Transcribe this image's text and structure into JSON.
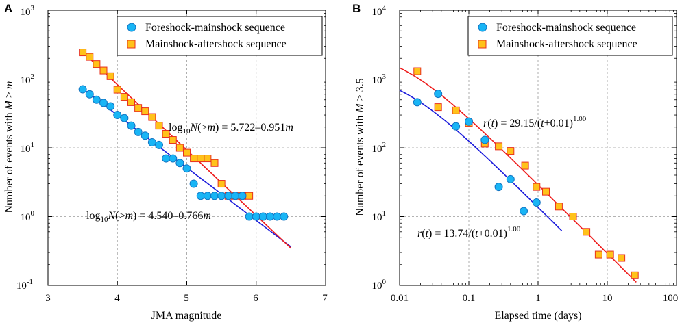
{
  "chart_data": [
    {
      "panel": "A",
      "type": "scatter",
      "xscale": "linear",
      "yscale": "log",
      "xlim": [
        3,
        7
      ],
      "ylim_exp": [
        -1,
        3
      ],
      "xticks": [
        "3",
        "4",
        "5",
        "6",
        "7"
      ],
      "yticks": [
        {
          "base": "10",
          "exp": "-1"
        },
        {
          "base": "10",
          "exp": "0"
        },
        {
          "base": "10",
          "exp": "1"
        },
        {
          "base": "10",
          "exp": "2"
        },
        {
          "base": "10",
          "exp": "3"
        }
      ],
      "xlabel": "JMA magnitude",
      "ylabel": {
        "prefix": "Number of events with ",
        "var1": "M",
        "mid": " > ",
        "var2": "m"
      },
      "legend": {
        "position": "top-right",
        "entries": [
          {
            "name": "Foreshock-mainshock sequence",
            "marker": "circle"
          },
          {
            "name": "Mainshock-aftershock sequence",
            "marker": "square"
          }
        ]
      },
      "colors": {
        "blue_fill": "#19b5f5",
        "blue_stroke": "#1274c2",
        "blue_line": "#1a1adb",
        "red_fill": "#ffc21a",
        "red_stroke": "#e8301e",
        "red_line": "#ee1c1c"
      },
      "series": [
        {
          "name": "Foreshock-mainshock sequence",
          "marker": "circle",
          "x": [
            3.5,
            3.6,
            3.7,
            3.8,
            3.9,
            4.0,
            4.1,
            4.2,
            4.3,
            4.4,
            4.5,
            4.6,
            4.7,
            4.8,
            4.9,
            5.0,
            5.1,
            5.2,
            5.3,
            5.4,
            5.5,
            5.6,
            5.7,
            5.8,
            5.9,
            6.0,
            6.1,
            6.2,
            6.3,
            6.4
          ],
          "y": [
            71,
            60,
            50,
            45,
            40,
            30,
            27,
            21,
            17,
            15,
            12,
            11,
            7,
            7,
            6,
            5,
            3,
            2,
            2,
            2,
            2,
            2,
            2,
            2,
            1,
            1,
            1,
            1,
            1,
            1
          ],
          "fit": {
            "x0": 3.5,
            "x1": 6.5,
            "a": 4.54,
            "b": 0.766
          }
        },
        {
          "name": "Mainshock-aftershock sequence",
          "marker": "square",
          "x": [
            3.5,
            3.6,
            3.7,
            3.8,
            3.9,
            4.0,
            4.1,
            4.2,
            4.3,
            4.4,
            4.5,
            4.6,
            4.7,
            4.8,
            4.9,
            5.0,
            5.1,
            5.2,
            5.3,
            5.4,
            5.5,
            5.6,
            5.7,
            5.8,
            5.9
          ],
          "y": [
            244,
            210,
            165,
            133,
            110,
            70,
            55,
            46,
            38,
            34,
            28,
            21,
            16,
            13,
            10,
            8.5,
            7,
            7,
            7,
            6,
            3,
            2,
            2,
            2,
            2
          ],
          "fit": {
            "x0": 3.5,
            "x1": 6.5,
            "a": 5.722,
            "b": 0.951
          }
        }
      ],
      "annotations": [
        {
          "pre": "log",
          "sub": "10",
          "var": "N",
          "mid": "(>",
          "var2": "m",
          "eq": ") = 5.722–0.951",
          "var3": "m"
        },
        {
          "pre": "log",
          "sub": "10",
          "var": "N",
          "mid": "(>",
          "var2": "m",
          "eq": ") = 4.540–0.766",
          "var3": "m"
        }
      ]
    },
    {
      "panel": "B",
      "type": "scatter",
      "xscale": "log",
      "yscale": "log",
      "xlim_exp": [
        -2,
        2
      ],
      "ylim_exp": [
        0,
        4
      ],
      "xticks": [
        "0.01",
        "0.1",
        "1",
        "10",
        "100"
      ],
      "yticks": [
        {
          "base": "10",
          "exp": "0"
        },
        {
          "base": "10",
          "exp": "1"
        },
        {
          "base": "10",
          "exp": "2"
        },
        {
          "base": "10",
          "exp": "3"
        },
        {
          "base": "10",
          "exp": "4"
        }
      ],
      "xlabel": "Elapsed time (days)",
      "ylabel": {
        "prefix": "Number of events with ",
        "var1": "M",
        "mid": " > 3.5"
      },
      "legend": {
        "position": "top-right",
        "entries": [
          {
            "name": "Foreshock-mainshock sequence",
            "marker": "circle"
          },
          {
            "name": "Mainshock-aftershock sequence",
            "marker": "square"
          }
        ]
      },
      "series": [
        {
          "name": "Foreshock-mainshock sequence",
          "marker": "circle",
          "x": [
            0.018,
            0.036,
            0.065,
            0.1,
            0.17,
            0.27,
            0.4,
            0.62,
            0.95
          ],
          "y": [
            460,
            610,
            205,
            240,
            130,
            27,
            35,
            12,
            16
          ],
          "fit": {
            "x0": 0.01,
            "x1": 2.2,
            "K": 13.74,
            "c": 0.01,
            "p": 1.0
          }
        },
        {
          "name": "Mainshock-aftershock sequence",
          "marker": "square",
          "x": [
            0.018,
            0.036,
            0.065,
            0.1,
            0.17,
            0.27,
            0.4,
            0.65,
            0.95,
            1.3,
            2.0,
            3.2,
            5.0,
            7.5,
            11,
            16,
            25
          ],
          "y": [
            1300,
            390,
            350,
            230,
            115,
            105,
            90,
            55,
            27,
            23,
            14,
            10,
            6,
            2.8,
            2.8,
            2.5,
            1.4
          ],
          "fit": {
            "x0": 0.01,
            "x1": 30,
            "K": 29.15,
            "c": 0.01,
            "p": 1.0
          }
        }
      ],
      "annotations": [
        {
          "var": "r",
          "mid": "(",
          "var2": "t",
          "eq": ") = 29.15/(",
          "var3": "t",
          "tail": "+0.01)",
          "sup": "1.00"
        },
        {
          "var": "r",
          "mid": "(",
          "var2": "t",
          "eq": ") = 13.74/(",
          "var3": "t",
          "tail": "+0.01)",
          "sup": "1.00"
        }
      ]
    }
  ]
}
